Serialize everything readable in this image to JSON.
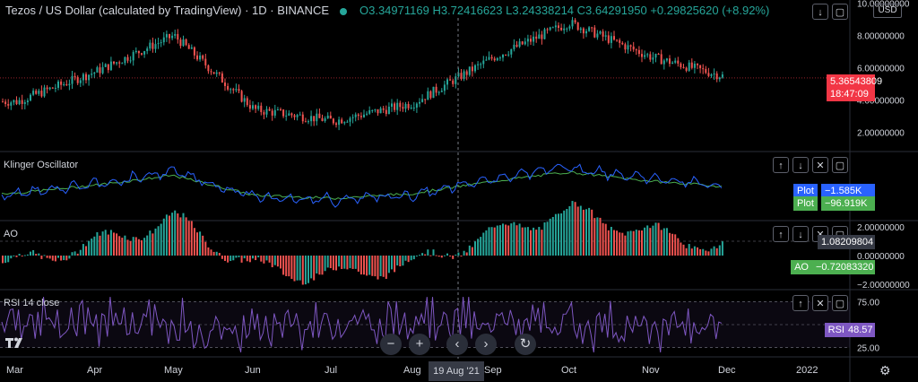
{
  "header": {
    "title": "Tezos / US Dollar (calculated by TradingView) · 1D · BINANCE",
    "ohlc": "O3.34971169 H3.72416623 L3.24338214 C3.64291950 +0.29825620 (+8.92%)",
    "currency": "USD"
  },
  "panes": {
    "klinger_label": "Klinger Oscillator",
    "ao_label": "AO",
    "rsi_label": "RSI 14 close"
  },
  "price_tags": {
    "last": "5.36543809",
    "countdown": "18:47:09",
    "klinger_plot1_name": "Plot",
    "klinger_plot1": "−1.585K",
    "klinger_plot2_name": "Plot",
    "klinger_plot2": "−96.919K",
    "ao_cross": "1.08209804",
    "ao_name": "AO",
    "ao_value": "−0.72083320",
    "rsi_name": "RSI",
    "rsi_value": "48.57"
  },
  "x_axis": {
    "labels": [
      "Mar",
      "Apr",
      "May",
      "Jun",
      "Jul",
      "Aug",
      "Sep",
      "Oct",
      "Nov",
      "Dec",
      "2022"
    ],
    "crosshair_date": "19 Aug '21"
  },
  "colors": {
    "up": "#26a69a",
    "down": "#ef5350",
    "ao_up": "#26a69a",
    "ao_down": "#ef5350",
    "klinger_fast": "#2962ff",
    "klinger_signal": "#4caf50",
    "rsi": "#7e57c2",
    "last_price": "#f23645"
  },
  "icons": {
    "arrow_up": "↑",
    "arrow_down": "↓",
    "close": "✕",
    "maximize": "▢",
    "reset": "↻",
    "minus": "−",
    "plus": "+",
    "prev": "‹",
    "next": "›",
    "settings": "⚙"
  },
  "chart_data": [
    {
      "type": "candlestick",
      "title": "Tezos / US Dollar (calculated by TradingView) · 1D · BINANCE",
      "ylim": [
        0.8,
        10.2
      ],
      "y_ticks": [
        "2.00000000",
        "4.00000000",
        "6.00000000",
        "8.00000000",
        "10.00000000"
      ],
      "months": [
        "Mar",
        "Apr",
        "May",
        "Jun",
        "Jul",
        "Aug",
        "Sep",
        "Oct",
        "Nov",
        "Dec"
      ],
      "close_by_month": [
        3.9,
        5.8,
        8.0,
        3.4,
        2.7,
        3.8,
        6.6,
        8.8,
        6.7,
        5.4
      ],
      "last": 5.36543809
    },
    {
      "type": "line",
      "title": "Klinger Oscillator",
      "series": [
        {
          "name": "Plot",
          "last": -1585
        },
        {
          "name": "Plot",
          "last": -96919
        }
      ]
    },
    {
      "type": "bar",
      "title": "AO",
      "y_ticks": [
        "−2.00000000",
        "0.00000000",
        "2.00000000"
      ],
      "last": -0.7208332,
      "crosshair": 1.08209804
    },
    {
      "type": "line",
      "title": "RSI 14 close",
      "y_ticks": [
        "25.00",
        "75.00"
      ],
      "last": 48.57
    }
  ]
}
